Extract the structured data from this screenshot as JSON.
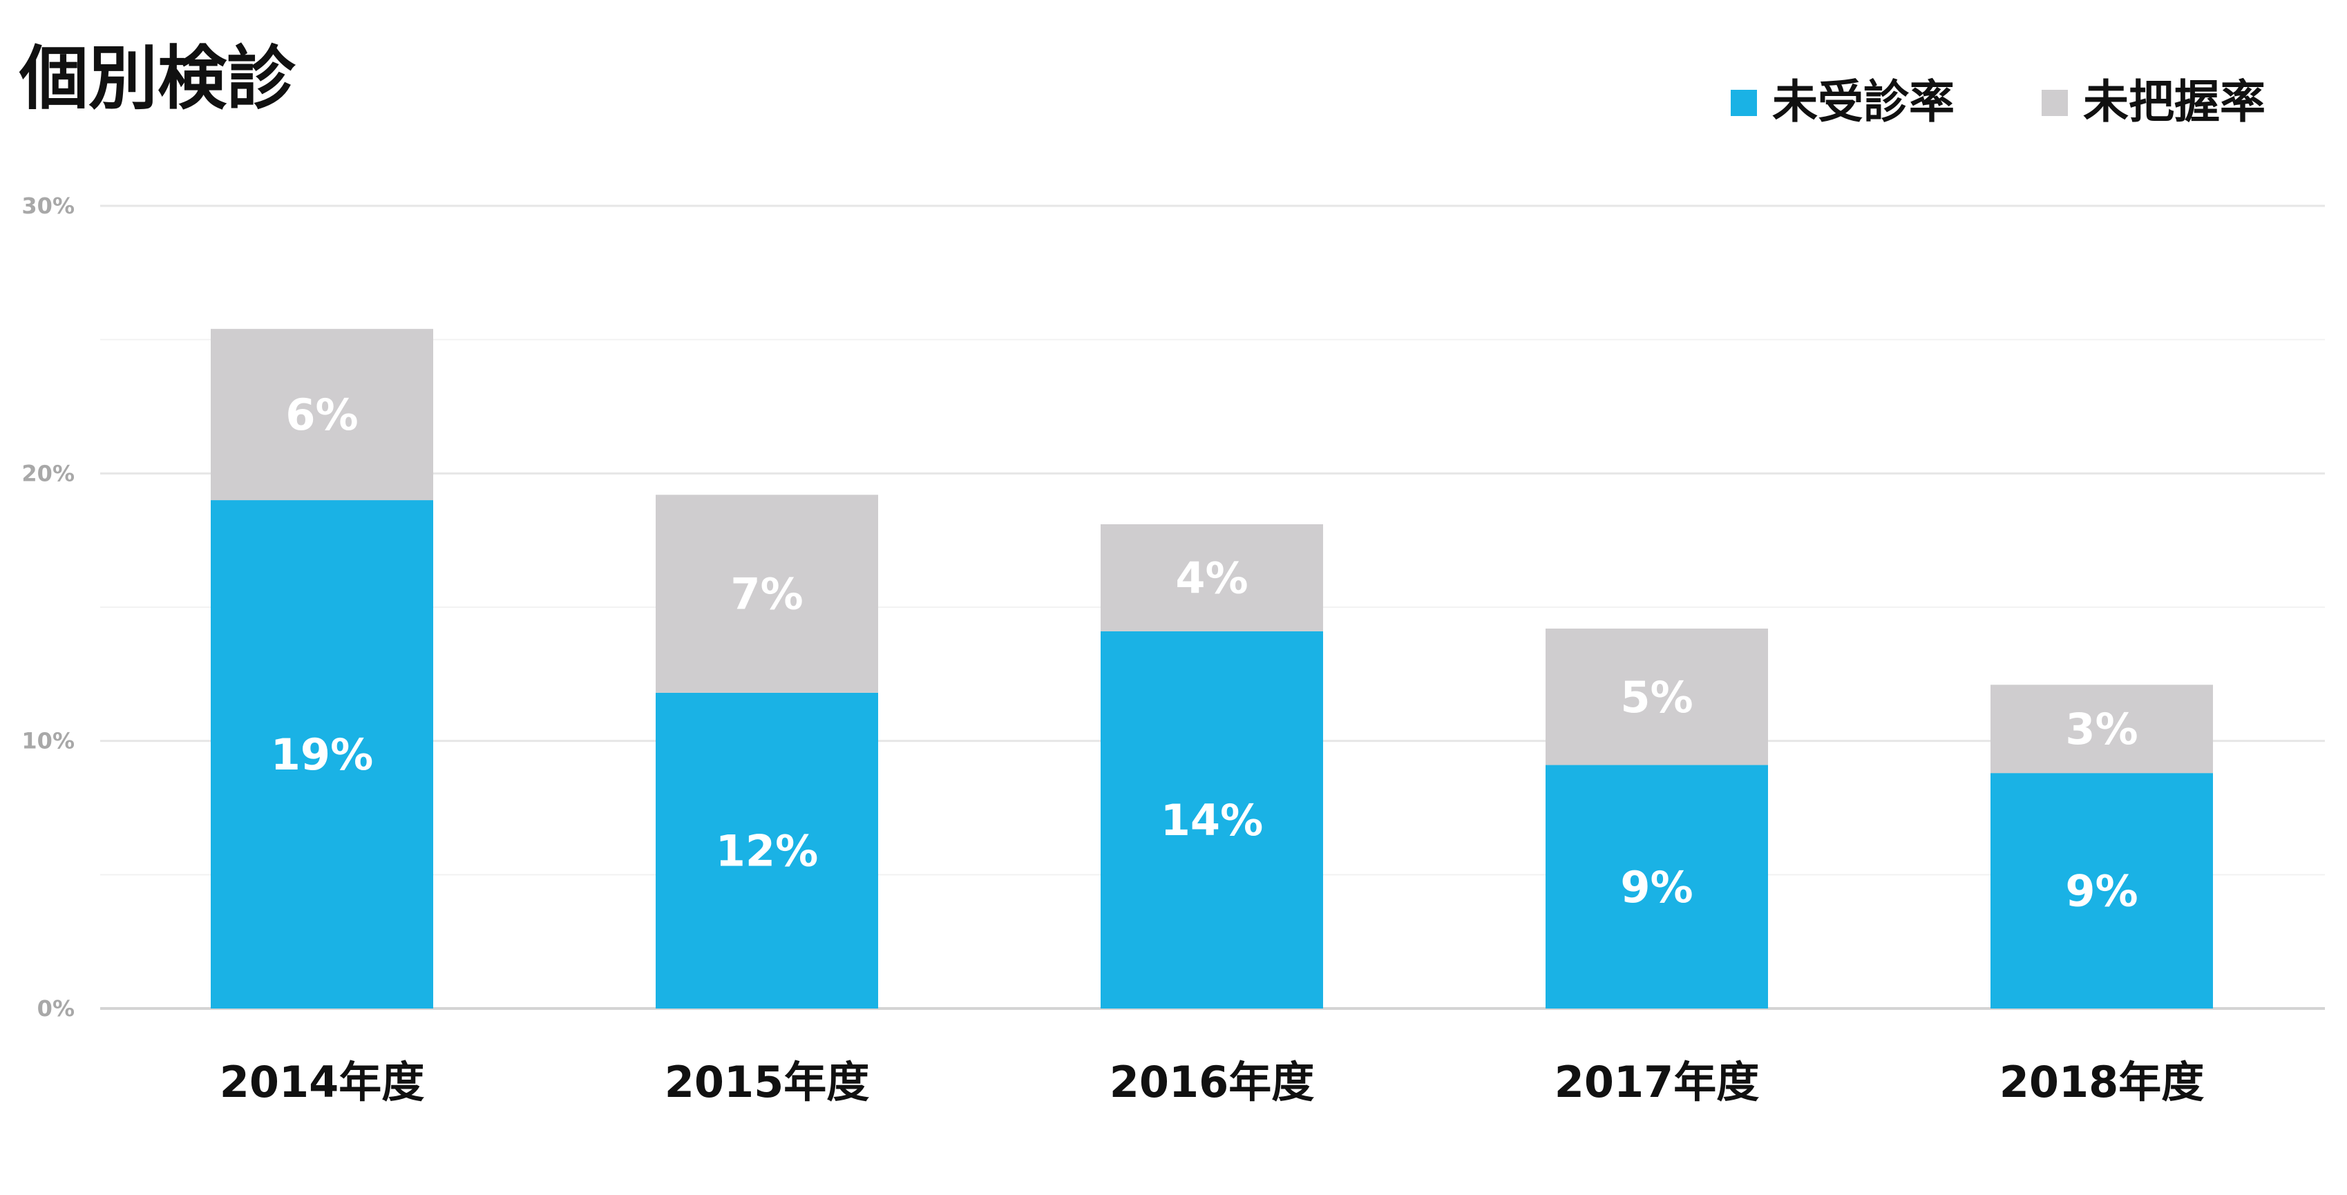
{
  "chart_data": {
    "type": "bar",
    "stacked": true,
    "title": "個別検診",
    "categories": [
      "2014年度",
      "2015年度",
      "2016年度",
      "2017年度",
      "2018年度"
    ],
    "series": [
      {
        "name": "未受診率",
        "color": "#1ab2e5",
        "values": [
          19,
          11.8,
          14.1,
          9.1,
          8.8
        ],
        "labels": [
          "19%",
          "12%",
          "14%",
          "9%",
          "9%"
        ]
      },
      {
        "name": "未把握率",
        "color": "#cfcdcf",
        "values": [
          6.4,
          7.4,
          4.0,
          5.1,
          3.3
        ],
        "labels": [
          "6%",
          "7%",
          "4%",
          "5%",
          "3%"
        ]
      }
    ],
    "ylim": [
      0,
      30
    ],
    "yticks": [
      0,
      10,
      20,
      30
    ],
    "ytick_labels": [
      "0%",
      "10%",
      "20%",
      "30%"
    ],
    "minor_gridlines": [
      5,
      15,
      25
    ],
    "grid": true,
    "legend_position": "top-right",
    "gridline_color": "#e6e6e6"
  }
}
